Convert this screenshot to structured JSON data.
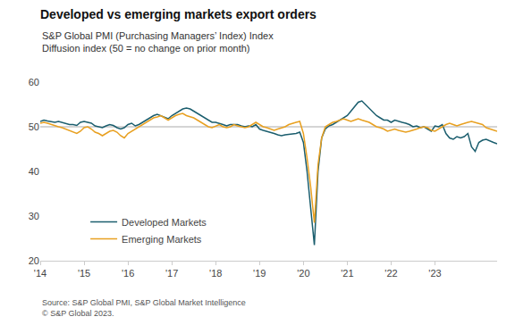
{
  "chart_data": {
    "type": "line",
    "title": "Developed vs emerging markets export orders",
    "subtitle": [
      "S&P Global PMI (Purchasing Managers’ Index) Index",
      "Diffusion index (50 = no change on prior month)"
    ],
    "source": [
      "Source: S&P Global PMI, S&P Global Market Intelligence",
      "© S&P Global 2023."
    ],
    "categories": [
      "'14",
      null,
      null,
      null,
      null,
      null,
      null,
      null,
      null,
      null,
      null,
      null,
      "'15",
      null,
      null,
      null,
      null,
      null,
      null,
      null,
      null,
      null,
      null,
      null,
      "'16",
      null,
      null,
      null,
      null,
      null,
      null,
      null,
      null,
      null,
      null,
      null,
      "'17",
      null,
      null,
      null,
      null,
      null,
      null,
      null,
      null,
      null,
      null,
      null,
      "'18",
      null,
      null,
      null,
      null,
      null,
      null,
      null,
      null,
      null,
      null,
      null,
      "'19",
      null,
      null,
      null,
      null,
      null,
      null,
      null,
      null,
      null,
      null,
      null,
      "'20",
      null,
      null,
      null,
      null,
      null,
      null,
      null,
      null,
      null,
      null,
      null,
      "'21",
      null,
      null,
      null,
      null,
      null,
      null,
      null,
      null,
      null,
      null,
      null,
      "'22",
      null,
      null,
      null,
      null,
      null,
      null,
      null,
      null,
      null,
      null,
      null,
      "'23",
      null,
      null,
      null,
      null,
      null,
      null,
      null,
      null,
      null,
      null,
      null,
      null,
      null,
      null,
      null,
      null,
      null
    ],
    "series": [
      {
        "name": "Developed Markets",
        "color": "#1b5e6e",
        "values": [
          51.2,
          51.5,
          51.3,
          51.1,
          51.0,
          51.2,
          51.0,
          50.8,
          50.5,
          50.5,
          50.3,
          51.0,
          51.2,
          51.0,
          50.8,
          50.2,
          50.0,
          49.8,
          50.2,
          50.5,
          50.3,
          49.8,
          49.5,
          49.8,
          50.5,
          50.8,
          50.2,
          50.5,
          51.0,
          51.5,
          52.0,
          52.5,
          52.8,
          52.5,
          52.2,
          51.8,
          52.5,
          53.0,
          53.5,
          54.0,
          54.2,
          54.0,
          53.5,
          53.0,
          52.5,
          52.0,
          51.5,
          51.0,
          51.0,
          50.8,
          50.5,
          50.2,
          50.5,
          50.5,
          50.5,
          50.2,
          50.0,
          50.2,
          50.0,
          50.5,
          49.5,
          49.2,
          49.0,
          48.8,
          48.5,
          48.2,
          48.0,
          48.2,
          48.3,
          48.5,
          48.5,
          48.8,
          46.5,
          40.0,
          32.0,
          23.5,
          40.0,
          47.5,
          49.5,
          50.2,
          50.5,
          51.0,
          51.5,
          52.0,
          52.5,
          53.5,
          54.5,
          55.5,
          55.8,
          55.0,
          54.2,
          53.5,
          52.5,
          52.0,
          51.5,
          51.5,
          51.0,
          51.5,
          51.2,
          51.0,
          50.8,
          50.5,
          50.0,
          50.2,
          49.8,
          50.0,
          49.5,
          49.0,
          50.2,
          50.0,
          50.5,
          48.5,
          47.5,
          47.2,
          47.8,
          47.5,
          47.8,
          48.5,
          45.5,
          44.5,
          46.5,
          47.0,
          47.2,
          46.8,
          46.5,
          46.2
        ]
      },
      {
        "name": "Emerging Markets",
        "color": "#e8a020",
        "values": [
          50.8,
          51.0,
          50.8,
          50.5,
          50.2,
          50.0,
          49.8,
          49.5,
          49.2,
          48.8,
          48.5,
          49.0,
          49.8,
          50.0,
          49.5,
          48.8,
          48.5,
          48.0,
          48.5,
          49.0,
          49.2,
          48.8,
          48.0,
          47.5,
          48.5,
          49.0,
          49.5,
          50.0,
          50.5,
          51.0,
          51.5,
          52.0,
          52.2,
          52.5,
          52.0,
          51.5,
          52.0,
          52.5,
          52.8,
          53.0,
          52.5,
          52.2,
          52.0,
          51.5,
          51.0,
          50.5,
          50.0,
          49.8,
          50.2,
          50.5,
          50.0,
          49.8,
          50.0,
          50.5,
          50.2,
          50.0,
          49.8,
          50.0,
          50.5,
          51.0,
          50.5,
          50.0,
          49.8,
          49.5,
          49.2,
          49.5,
          49.8,
          50.0,
          50.5,
          50.8,
          51.0,
          51.2,
          48.5,
          43.0,
          36.5,
          28.5,
          41.5,
          47.5,
          50.0,
          50.5,
          51.0,
          51.2,
          51.5,
          51.8,
          51.5,
          51.2,
          51.5,
          51.8,
          51.5,
          51.2,
          51.0,
          50.5,
          50.0,
          49.8,
          49.5,
          49.0,
          49.2,
          49.5,
          49.2,
          49.0,
          48.8,
          49.0,
          49.2,
          49.5,
          49.8,
          50.0,
          49.8,
          49.2,
          49.0,
          49.5,
          50.0,
          50.5,
          50.8,
          50.5,
          50.2,
          50.5,
          50.8,
          51.0,
          51.2,
          51.0,
          50.8,
          50.5,
          49.8,
          49.5,
          49.2,
          49.0
        ]
      }
    ],
    "reference_line": {
      "value": 50,
      "color": "#aaaaaa"
    },
    "ylim": [
      20,
      60
    ],
    "yticks": [
      20,
      30,
      40,
      50,
      60
    ],
    "grid": false,
    "legend": "lower left"
  }
}
